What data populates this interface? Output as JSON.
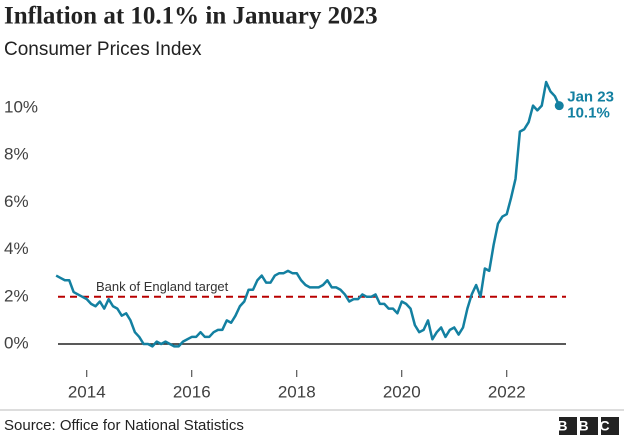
{
  "chart_data": {
    "type": "line",
    "title": "Inflation at 10.1% in January 2023",
    "subtitle": "Consumer Prices Index",
    "source": "Source: Office for National Statistics",
    "logo": "BBC",
    "x": [
      2013.417,
      2013.5,
      2013.583,
      2013.667,
      2013.75,
      2013.833,
      2013.917,
      2014,
      2014.083,
      2014.167,
      2014.25,
      2014.333,
      2014.417,
      2014.5,
      2014.583,
      2014.667,
      2014.75,
      2014.833,
      2014.917,
      2015,
      2015.083,
      2015.167,
      2015.25,
      2015.333,
      2015.417,
      2015.5,
      2015.583,
      2015.667,
      2015.75,
      2015.833,
      2015.917,
      2016,
      2016.083,
      2016.167,
      2016.25,
      2016.333,
      2016.417,
      2016.5,
      2016.583,
      2016.667,
      2016.75,
      2016.833,
      2016.917,
      2017,
      2017.083,
      2017.167,
      2017.25,
      2017.333,
      2017.417,
      2017.5,
      2017.583,
      2017.667,
      2017.75,
      2017.833,
      2017.917,
      2018,
      2018.083,
      2018.167,
      2018.25,
      2018.333,
      2018.417,
      2018.5,
      2018.583,
      2018.667,
      2018.75,
      2018.833,
      2018.917,
      2019,
      2019.083,
      2019.167,
      2019.25,
      2019.333,
      2019.417,
      2019.5,
      2019.583,
      2019.667,
      2019.75,
      2019.833,
      2019.917,
      2020,
      2020.083,
      2020.167,
      2020.25,
      2020.333,
      2020.417,
      2020.5,
      2020.583,
      2020.667,
      2020.75,
      2020.833,
      2020.917,
      2021,
      2021.083,
      2021.167,
      2021.25,
      2021.333,
      2021.417,
      2021.5,
      2021.583,
      2021.667,
      2021.75,
      2021.833,
      2021.917,
      2022,
      2022.083,
      2022.167,
      2022.25,
      2022.333,
      2022.417,
      2022.5,
      2022.583,
      2022.667,
      2022.75,
      2022.833,
      2022.917,
      2023
    ],
    "series": [
      {
        "color": "#1380a1",
        "values": [
          2.9,
          2.8,
          2.7,
          2.7,
          2.2,
          2.1,
          2.0,
          1.9,
          1.7,
          1.6,
          1.8,
          1.5,
          1.9,
          1.6,
          1.5,
          1.2,
          1.3,
          1.0,
          0.5,
          0.3,
          0.0,
          0.0,
          -0.1,
          0.1,
          0.0,
          0.1,
          0.0,
          -0.1,
          -0.1,
          0.1,
          0.2,
          0.3,
          0.3,
          0.5,
          0.3,
          0.3,
          0.5,
          0.6,
          0.6,
          1.0,
          0.9,
          1.2,
          1.6,
          1.8,
          2.3,
          2.3,
          2.7,
          2.9,
          2.6,
          2.6,
          2.9,
          3.0,
          3.0,
          3.1,
          3.0,
          3.0,
          2.7,
          2.5,
          2.4,
          2.4,
          2.4,
          2.5,
          2.7,
          2.4,
          2.4,
          2.3,
          2.1,
          1.8,
          1.9,
          1.9,
          2.1,
          2.0,
          2.0,
          2.1,
          1.7,
          1.7,
          1.5,
          1.5,
          1.3,
          1.8,
          1.7,
          1.5,
          0.8,
          0.5,
          0.6,
          1.0,
          0.2,
          0.5,
          0.7,
          0.3,
          0.6,
          0.7,
          0.4,
          0.7,
          1.5,
          2.1,
          2.5,
          2.0,
          3.2,
          3.1,
          4.2,
          5.1,
          5.4,
          5.5,
          6.2,
          7.0,
          9.0,
          9.1,
          9.4,
          10.1,
          9.9,
          10.1,
          11.1,
          10.7,
          10.5,
          10.1
        ]
      }
    ],
    "end_label": {
      "date": "Jan 23",
      "value": "10.1%"
    },
    "target": {
      "label": "Bank of England target",
      "value": 2,
      "color": "#b80000"
    },
    "xlim": [
      2013.3,
      2023.3
    ],
    "xticks": [
      2014,
      2016,
      2018,
      2020,
      2022
    ],
    "ylim": [
      -1,
      11.5
    ],
    "yticks": [
      {
        "value": 0,
        "label": "0%"
      },
      {
        "value": 2,
        "label": "2%"
      },
      {
        "value": 4,
        "label": "4%"
      },
      {
        "value": 6,
        "label": "6%"
      },
      {
        "value": 8,
        "label": "8%"
      },
      {
        "value": 10,
        "label": "10%"
      }
    ],
    "grid": false
  }
}
